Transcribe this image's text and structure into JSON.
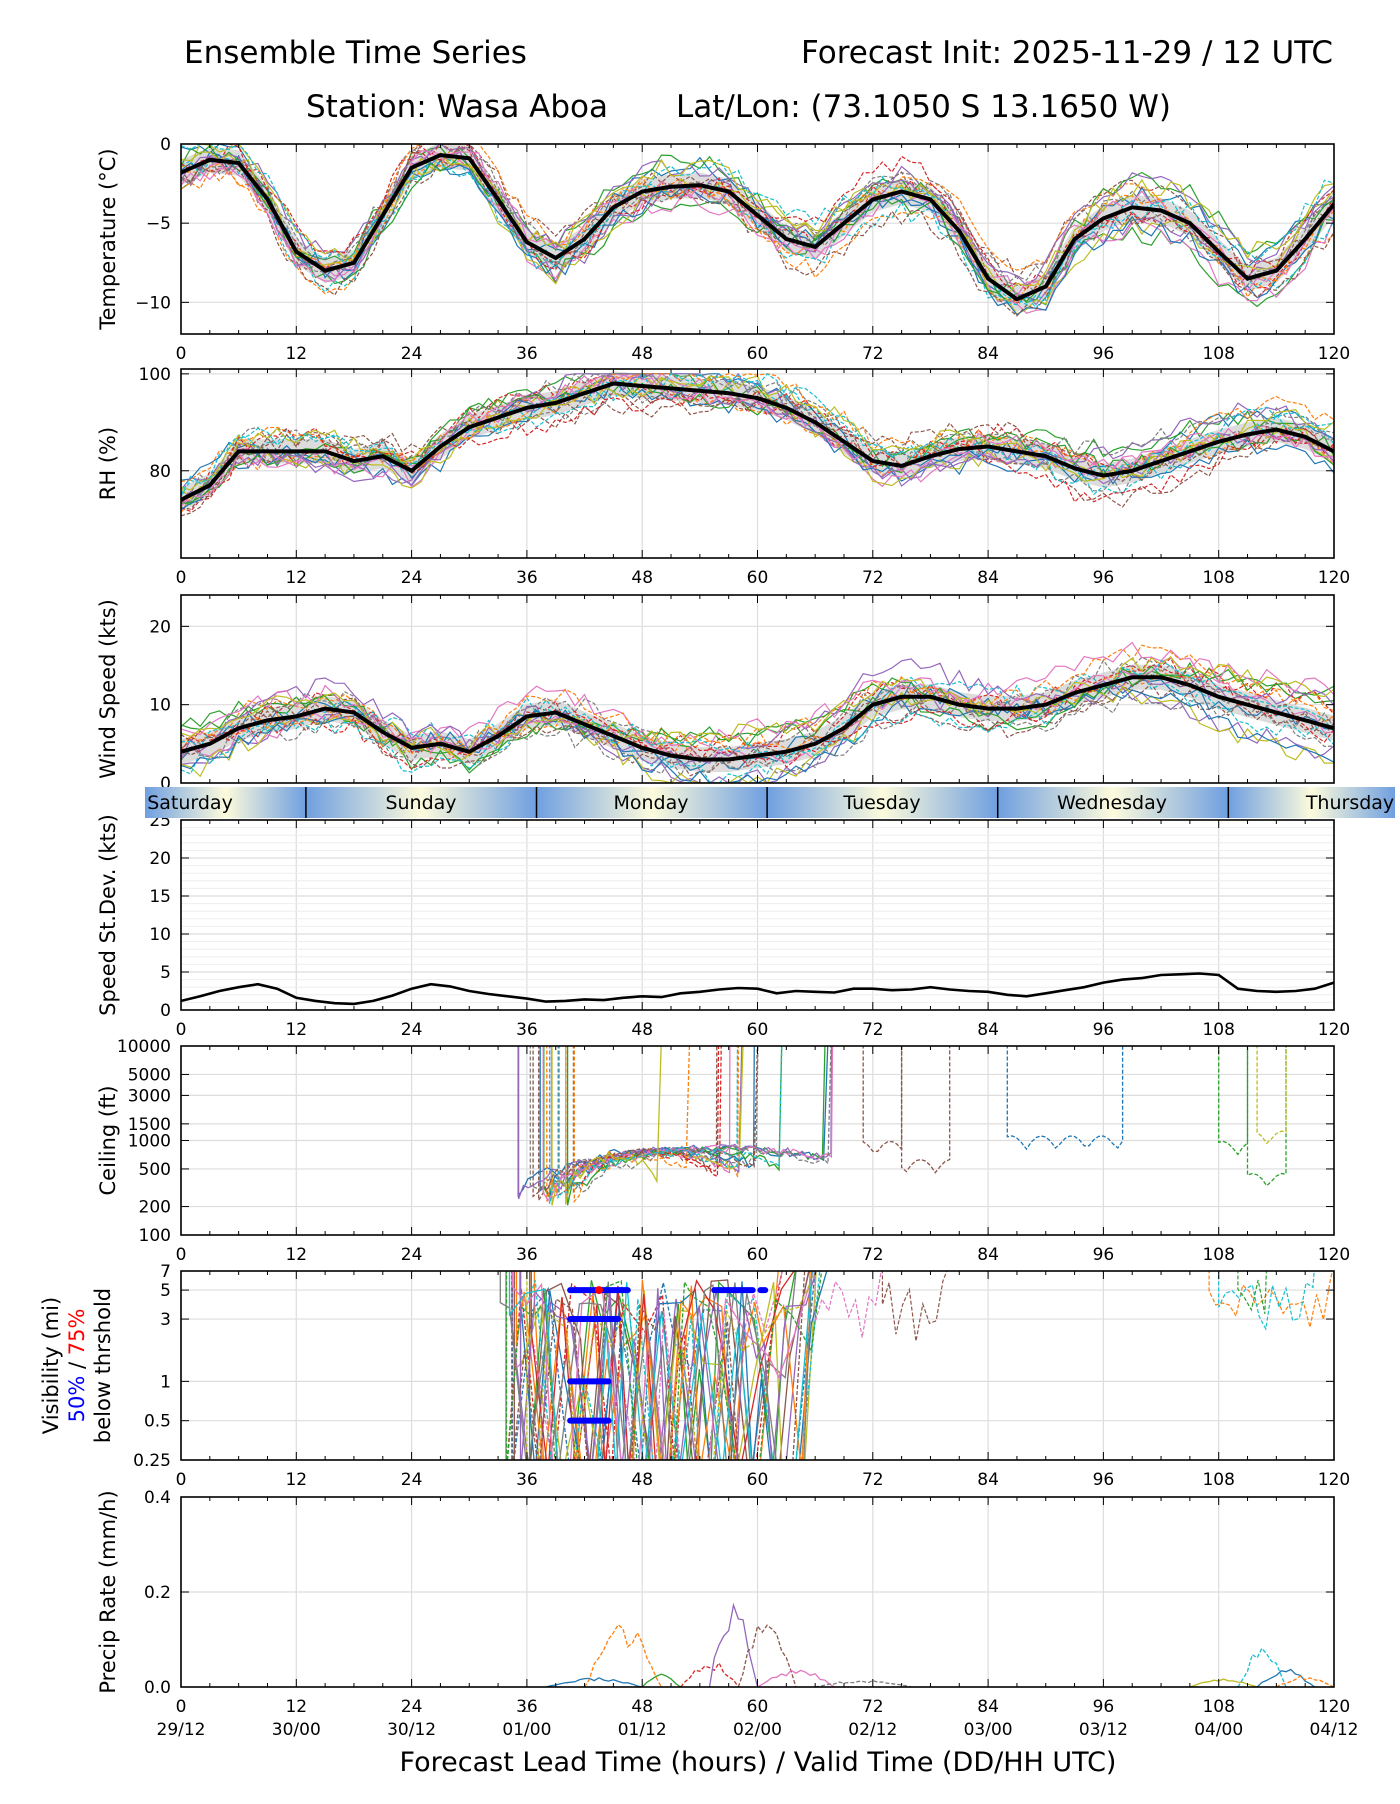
{
  "header": {
    "title": "Ensemble Time Series",
    "init": "Forecast Init: 2025-11-29 / 12 UTC",
    "station": "Station: Wasa Aboa",
    "latlon": "Lat/Lon: (73.1050 S 13.1650 W)"
  },
  "colors": {
    "mean": "#000000",
    "spread": "#d3d3d3",
    "grid": "#dddddd",
    "members": [
      "#1f77b4",
      "#ff7f0e",
      "#2ca02c",
      "#d62728",
      "#9467bd",
      "#8c564b",
      "#e377c2",
      "#7f7f7f",
      "#bcbd22",
      "#17becf"
    ],
    "day_band_blue": "#6f9fe0",
    "day_band_cream": "#fdfbdc",
    "threshold_50": "#0000ff",
    "threshold_75": "#ff0000"
  },
  "x_axis": {
    "lead_ticks": [
      0,
      12,
      24,
      36,
      48,
      60,
      72,
      84,
      96,
      108,
      120
    ],
    "valid_labels": [
      "29/12",
      "30/00",
      "30/12",
      "01/00",
      "01/12",
      "02/00",
      "02/12",
      "03/00",
      "03/12",
      "04/00",
      "04/12"
    ],
    "xlabel": "Forecast Lead Time (hours) / Valid Time (DD/HH UTC)"
  },
  "day_band": {
    "days": [
      "Saturday",
      "Sunday",
      "Monday",
      "Tuesday",
      "Wednesday",
      "Thursday"
    ],
    "boundaries": [
      13,
      37,
      61,
      85,
      109
    ]
  },
  "chart_data": [
    {
      "type": "line",
      "title": "Temperature",
      "ylabel": "Temperature (°C)",
      "ylim": [
        -12,
        0
      ],
      "yticks": [
        0,
        -5,
        -10
      ],
      "ytick_labels": [
        "0",
        "−5",
        "−10"
      ],
      "members": 20,
      "mean": {
        "x": [
          0,
          3,
          6,
          9,
          12,
          15,
          18,
          21,
          24,
          27,
          30,
          33,
          36,
          39,
          42,
          45,
          48,
          51,
          54,
          57,
          60,
          63,
          66,
          69,
          72,
          75,
          78,
          81,
          84,
          87,
          90,
          93,
          96,
          99,
          102,
          105,
          108,
          111,
          114,
          117,
          120
        ],
        "y": [
          -1.8,
          -1,
          -1.2,
          -3.5,
          -6.8,
          -8,
          -7.5,
          -4.5,
          -1.5,
          -0.7,
          -0.9,
          -3.5,
          -6.2,
          -7.2,
          -6,
          -4,
          -3,
          -2.7,
          -2.6,
          -3,
          -4.5,
          -6,
          -6.5,
          -5,
          -3.5,
          -3,
          -3.5,
          -5.5,
          -8.5,
          -9.8,
          -9,
          -6,
          -4.7,
          -4,
          -4.2,
          -5,
          -6.8,
          -8.5,
          -8,
          -6,
          -3.8
        ]
      },
      "spread": 0.8
    },
    {
      "type": "line",
      "title": "Relative Humidity",
      "ylabel": "RH (%)",
      "ylim": [
        62,
        101
      ],
      "yticks": [
        80,
        100
      ],
      "ytick_labels": [
        "80",
        "100"
      ],
      "members": 20,
      "mean": {
        "x": [
          0,
          3,
          6,
          9,
          12,
          15,
          18,
          21,
          24,
          27,
          30,
          33,
          36,
          39,
          42,
          45,
          48,
          51,
          54,
          57,
          60,
          63,
          66,
          69,
          72,
          75,
          78,
          81,
          84,
          87,
          90,
          93,
          96,
          99,
          102,
          105,
          108,
          111,
          114,
          117,
          120
        ],
        "y": [
          74,
          77,
          84,
          84,
          84,
          84,
          82,
          83,
          80,
          85,
          89,
          91,
          93,
          94,
          96,
          98,
          97.5,
          97,
          96.5,
          96,
          95,
          93,
          90,
          86,
          82,
          81,
          83,
          84.5,
          85,
          84,
          83,
          80.5,
          79,
          80,
          82,
          84,
          86,
          87.5,
          88.5,
          87,
          84
        ]
      },
      "spread": 2.5
    },
    {
      "type": "line",
      "title": "Wind Speed",
      "ylabel": "Wind Speed (kts)",
      "ylim": [
        0,
        24
      ],
      "yticks": [
        0,
        10,
        20
      ],
      "ytick_labels": [
        "0",
        "10",
        "20"
      ],
      "members": 20,
      "mean": {
        "x": [
          0,
          3,
          6,
          9,
          12,
          15,
          18,
          21,
          24,
          27,
          30,
          33,
          36,
          39,
          42,
          45,
          48,
          51,
          54,
          57,
          60,
          63,
          66,
          69,
          72,
          75,
          78,
          81,
          84,
          87,
          90,
          93,
          96,
          99,
          102,
          105,
          108,
          111,
          114,
          117,
          120
        ],
        "y": [
          4,
          5,
          7,
          8,
          8.5,
          9.5,
          9,
          6.5,
          4.5,
          5,
          4,
          6,
          8.5,
          9,
          7.5,
          6,
          4.5,
          3.5,
          3,
          3,
          3.5,
          4,
          5,
          7,
          10,
          11,
          11,
          10,
          9.5,
          9.5,
          10,
          11.5,
          12.5,
          13.5,
          13.5,
          12.5,
          11,
          10,
          9,
          8,
          7
        ]
      },
      "spread": 1.6
    },
    {
      "type": "line",
      "title": "Speed Standard Deviation",
      "ylabel": "Speed St.Dev. (kts)",
      "ylim": [
        0,
        25
      ],
      "yticks": [
        0,
        5,
        10,
        15,
        20,
        25
      ],
      "ytick_labels": [
        "0",
        "5",
        "10",
        "15",
        "20",
        "25"
      ],
      "series": [
        {
          "name": "Speed St.Dev.",
          "x": [
            0,
            2,
            4,
            6,
            8,
            10,
            12,
            14,
            16,
            18,
            20,
            22,
            24,
            26,
            28,
            30,
            32,
            34,
            36,
            38,
            40,
            42,
            44,
            46,
            48,
            50,
            52,
            54,
            56,
            58,
            60,
            62,
            64,
            66,
            68,
            70,
            72,
            74,
            76,
            78,
            80,
            82,
            84,
            86,
            88,
            90,
            92,
            94,
            96,
            98,
            100,
            102,
            104,
            106,
            108,
            110,
            112,
            114,
            116,
            118,
            120
          ],
          "y": [
            1.2,
            1.8,
            2.5,
            3,
            3.4,
            2.8,
            1.6,
            1.2,
            0.9,
            0.8,
            1.2,
            1.9,
            2.8,
            3.4,
            3.1,
            2.5,
            2.1,
            1.8,
            1.5,
            1.1,
            1.2,
            1.4,
            1.3,
            1.6,
            1.8,
            1.7,
            2.2,
            2.4,
            2.7,
            2.9,
            2.8,
            2.2,
            2.5,
            2.4,
            2.3,
            2.8,
            2.8,
            2.6,
            2.7,
            3,
            2.7,
            2.5,
            2.4,
            2.0,
            1.8,
            2.2,
            2.6,
            3,
            3.6,
            4,
            4.2,
            4.6,
            4.7,
            4.8,
            4.6,
            2.8,
            2.5,
            2.4,
            2.5,
            2.8,
            3.6
          ]
        }
      ]
    },
    {
      "type": "line",
      "title": "Ceiling",
      "ylabel": "Ceiling (ft)",
      "yscale": "log",
      "ylim": [
        100,
        10000
      ],
      "yticks": [
        100,
        200,
        500,
        1000,
        1500,
        3000,
        5000,
        10000
      ],
      "ytick_labels": [
        "100",
        "200",
        "500",
        "1000",
        "1500",
        "3000",
        "5000",
        "10000"
      ],
      "members": 20
    },
    {
      "type": "line",
      "title": "Visibility",
      "ylabel": "Visibility (mi)",
      "ylabel_threshold_50": "50%",
      "ylabel_sep": " / ",
      "ylabel_threshold_75": "75%",
      "ylabel_line3": "below thrshold",
      "yscale": "log",
      "ylim": [
        0.25,
        7
      ],
      "yticks": [
        0.25,
        0.5,
        1,
        3,
        5,
        7
      ],
      "ytick_labels": [
        "0.25",
        "0.5",
        "1",
        "3",
        "5",
        "7"
      ],
      "members": 20,
      "threshold_bars_50": [
        {
          "level": 5,
          "x0": 40.5,
          "x1": 46.5
        },
        {
          "level": 3,
          "x0": 40.5,
          "x1": 45.5
        },
        {
          "level": 1,
          "x0": 40.5,
          "x1": 44.5
        },
        {
          "level": 0.5,
          "x0": 40.5,
          "x1": 44.5
        },
        {
          "level": 5,
          "x0": 55.5,
          "x1": 59.5
        },
        {
          "level": 5,
          "x0": 60.3,
          "x1": 60.8
        }
      ],
      "threshold_points_75": [
        {
          "level": 5,
          "x": 43.5
        }
      ]
    },
    {
      "type": "line",
      "title": "Precipitation Rate",
      "ylabel": "Precip Rate (mm/h)",
      "ylim": [
        0,
        0.4
      ],
      "yticks": [
        0,
        0.2,
        0.4
      ],
      "ytick_labels": [
        "0.0",
        "0.2",
        "0.4"
      ],
      "members": 20
    }
  ]
}
